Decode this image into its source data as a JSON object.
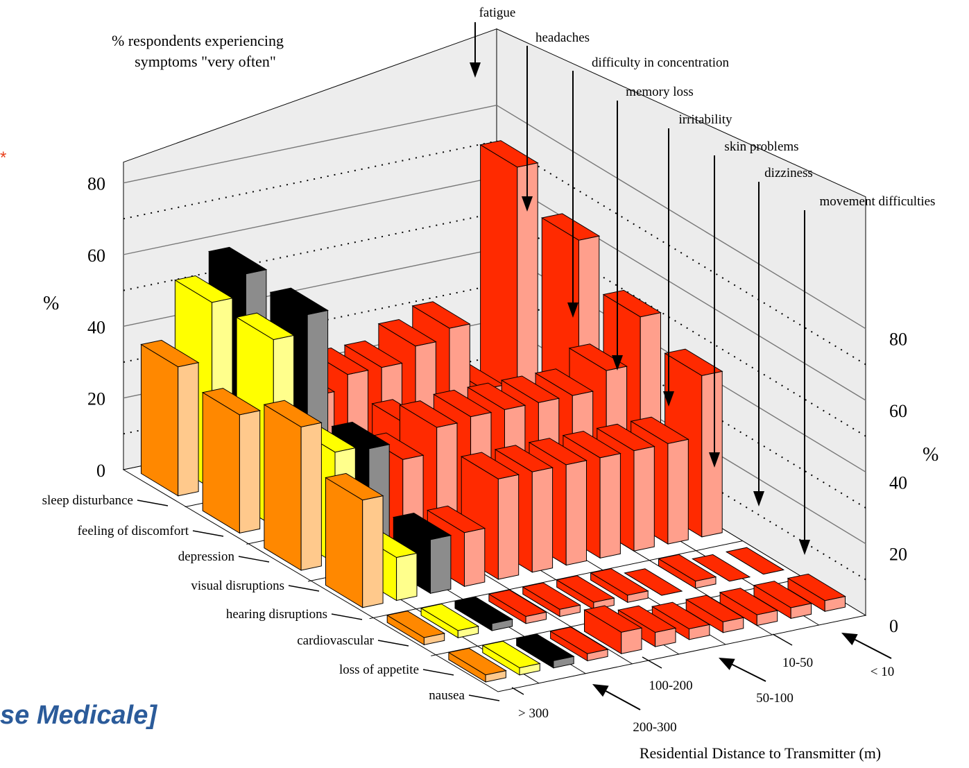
{
  "chart_data": {
    "type": "bar3d",
    "title": "% respondents  experiencing\nsymptoms  \"very often\"",
    "z_label": "%",
    "x_label": "Residential Distance to Transmitter (m)",
    "zlim": [
      0,
      80
    ],
    "z_ticks": [
      "0",
      "20",
      "40",
      "60",
      "80"
    ],
    "distances": [
      "< 10",
      "10-50",
      "50-100",
      "100-200",
      "200-300",
      "> 300"
    ],
    "symptom_labels": {
      "left": [
        "sleep disturbance",
        "feeling of discomfort",
        "depression",
        "visual disruptions",
        "hearing disruptions",
        "cardiovascular",
        "loss of appetite",
        "nausea"
      ],
      "right": [
        "fatigue",
        "headaches",
        "difficulty in concentration",
        "memory loss",
        "irritability",
        "skin problems",
        "dizziness",
        "movement difficulties"
      ]
    },
    "series": [
      {
        "name": "fatigue",
        "color": "#ff2a00",
        "values": [
          72,
          62,
          51,
          45,
          0,
          3
        ]
      },
      {
        "name": "headaches",
        "color": "#ff2a00",
        "values": [
          12,
          12,
          38,
          28,
          0,
          3
        ]
      },
      {
        "name": "difficulty in concentration",
        "color": "#ff2a00",
        "values": [
          31,
          6,
          33,
          28,
          2,
          3
        ]
      },
      {
        "name": "memory loss",
        "color": "#ff2a00",
        "values": [
          28,
          6,
          33,
          28,
          0,
          3
        ]
      },
      {
        "name": "irritability",
        "color": "#ff2a00",
        "values": [
          24,
          6,
          33,
          28,
          2,
          3
        ]
      },
      {
        "name": "skin problems",
        "color": "#ff2a00",
        "values": [
          24,
          20,
          33,
          28,
          2,
          4
        ]
      },
      {
        "name": "dizziness",
        "color": "#ff2a00",
        "values": [
          20,
          12,
          32,
          28,
          2,
          6
        ]
      },
      {
        "name": "movement difficulties",
        "color": "#ff2a00",
        "values": [
          16,
          10,
          25,
          15,
          2,
          2
        ]
      },
      {
        "name": "sleep disturbance",
        "color": "#000000",
        "values": [
          58,
          57,
          30,
          15,
          2,
          2
        ]
      },
      {
        "name": "feeling of discomfort",
        "color": "#ffff00",
        "values": [
          52,
          52,
          31,
          12,
          2,
          2
        ]
      },
      {
        "name": "depression",
        "color": "#ff8800",
        "values": [
          36,
          33,
          40,
          30,
          2,
          2
        ]
      }
    ]
  },
  "annotations": {
    "asterisk": "*",
    "source_note": "se Medicale]"
  }
}
